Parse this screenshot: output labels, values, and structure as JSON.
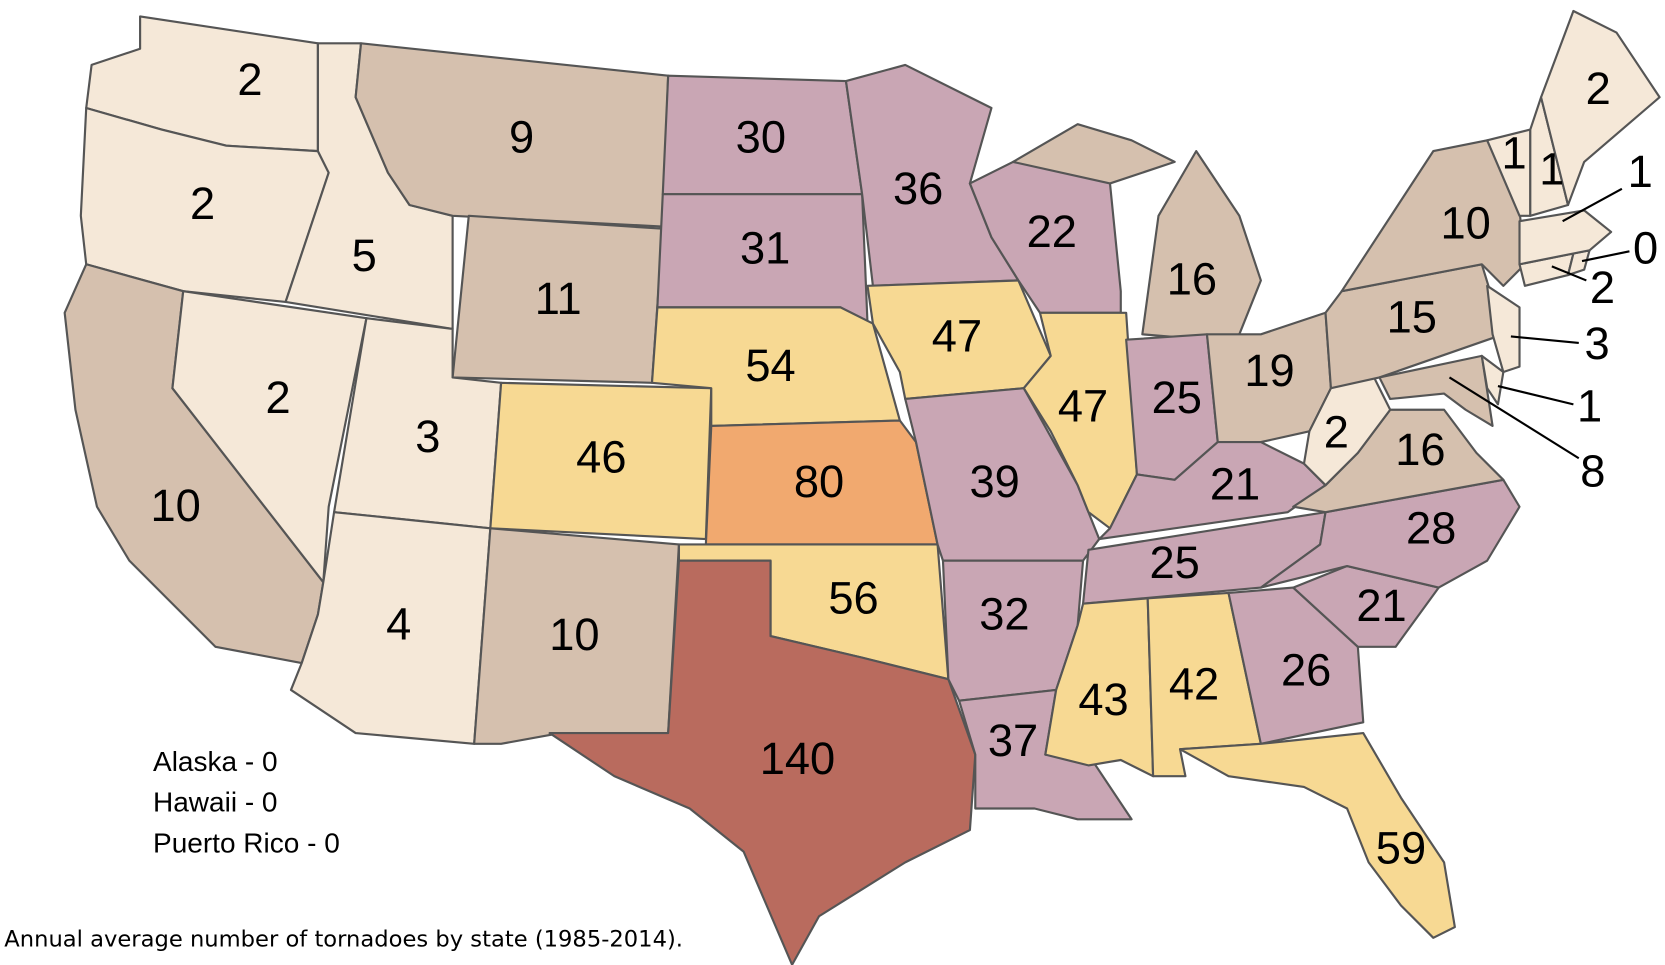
{
  "title": "Annual average number of tornadoes by state (1985-2014).",
  "notes": [
    "Alaska - 0",
    "Hawaii - 0",
    "Puerto Rico - 0"
  ],
  "regions": [
    {
      "value": 2,
      "color": "#f5e8d8"
    },
    {
      "value": 2,
      "color": "#f5e8d8"
    },
    {
      "value": 10,
      "color": "#d5c0ae"
    },
    {
      "value": 5,
      "color": "#f5e8d8"
    },
    {
      "value": 2,
      "color": "#f5e8d8"
    },
    {
      "value": 3,
      "color": "#f5e8d8"
    },
    {
      "value": 4,
      "color": "#f5e8d8"
    },
    {
      "value": 9,
      "color": "#d5c0ae"
    },
    {
      "value": 11,
      "color": "#d5c0ae"
    },
    {
      "value": 46,
      "color": "#f7d993"
    },
    {
      "value": 10,
      "color": "#d5c0ae"
    },
    {
      "value": 30,
      "color": "#c9a6b4"
    },
    {
      "value": 31,
      "color": "#c9a6b4"
    },
    {
      "value": 54,
      "color": "#f7d993"
    },
    {
      "value": 80,
      "color": "#f1a96f"
    },
    {
      "value": 56,
      "color": "#f7d993"
    },
    {
      "value": 140,
      "color": "#b96b5e"
    },
    {
      "value": 36,
      "color": "#c9a6b4"
    },
    {
      "value": 47,
      "color": "#f7d993"
    },
    {
      "value": 39,
      "color": "#c9a6b4"
    },
    {
      "value": 32,
      "color": "#c9a6b4"
    },
    {
      "value": 37,
      "color": "#c9a6b4"
    },
    {
      "value": 22,
      "color": "#c9a6b4"
    },
    {
      "value": 47,
      "color": "#f7d993"
    },
    {
      "value": 16,
      "color": "#d5c0ae"
    },
    {
      "value": 25,
      "color": "#c9a6b4"
    },
    {
      "value": 19,
      "color": "#d5c0ae"
    },
    {
      "value": 21,
      "color": "#c9a6b4"
    },
    {
      "value": 25,
      "color": "#c9a6b4"
    },
    {
      "value": 43,
      "color": "#f7d993"
    },
    {
      "value": 42,
      "color": "#f7d993"
    },
    {
      "value": 26,
      "color": "#c9a6b4"
    },
    {
      "value": 59,
      "color": "#f7d993"
    },
    {
      "value": 21,
      "color": "#c9a6b4"
    },
    {
      "value": 28,
      "color": "#c9a6b4"
    },
    {
      "value": 16,
      "color": "#d5c0ae"
    },
    {
      "value": 2,
      "color": "#f5e8d8"
    },
    {
      "value": 15,
      "color": "#d5c0ae"
    },
    {
      "value": 10,
      "color": "#d5c0ae"
    },
    {
      "value": 8,
      "color": "#d5c0ae"
    },
    {
      "value": 1,
      "color": "#f5e8d8"
    },
    {
      "value": 3,
      "color": "#f5e8d8"
    },
    {
      "value": 2,
      "color": "#f5e8d8"
    },
    {
      "value": 0,
      "color": "#f5e8d8"
    },
    {
      "value": 1,
      "color": "#f5e8d8"
    },
    {
      "value": 1,
      "color": "#f5e8d8"
    },
    {
      "value": 1,
      "color": "#f5e8d8"
    },
    {
      "value": 2,
      "color": "#f5e8d8"
    }
  ]
}
